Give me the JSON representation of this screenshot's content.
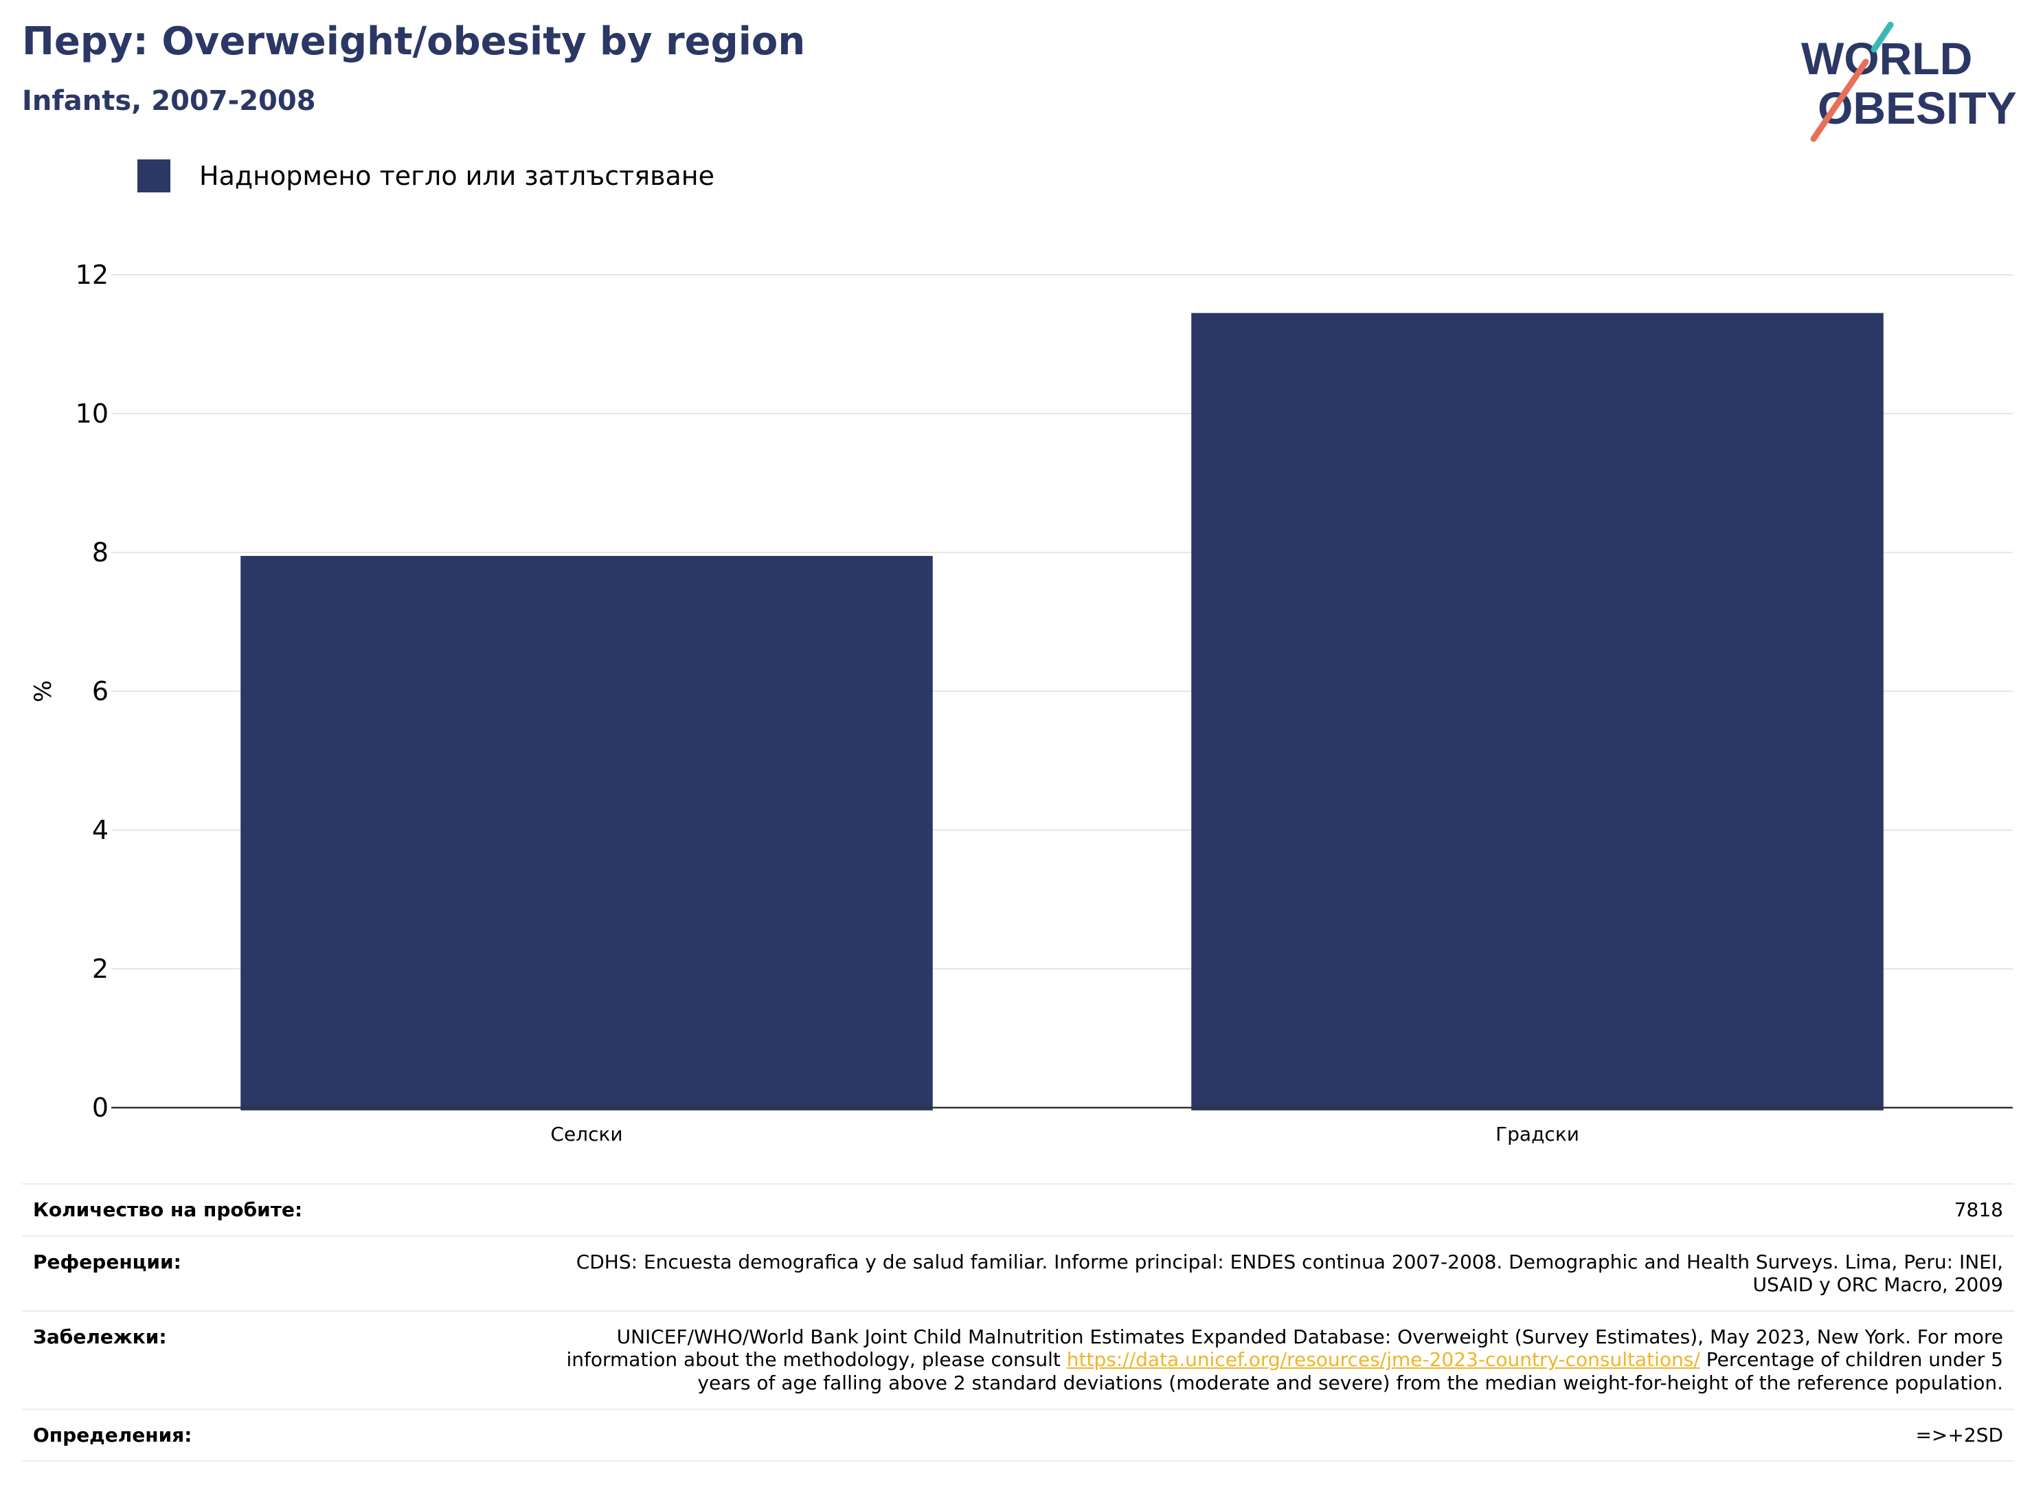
{
  "header": {
    "title": "Перу: Overweight/obesity by region",
    "subtitle": "Infants, 2007-2008"
  },
  "logo": {
    "line1": "WORLD",
    "line2": "OBESITY"
  },
  "colors": {
    "bar": "#2b3764",
    "title": "#2b3764",
    "link": "#f0b429",
    "grid": "#e6e6e6",
    "axis": "#333333"
  },
  "chart_data": {
    "type": "bar",
    "categories": [
      "Селски",
      "Градски"
    ],
    "series": [
      {
        "name": "Наднормено тегло или затлъстяване",
        "values": [
          7.95,
          11.45
        ]
      }
    ],
    "ylabel": "%",
    "xlabel": "",
    "ylim": [
      0,
      12
    ],
    "yticks": [
      0,
      2,
      4,
      6,
      8,
      10,
      12
    ],
    "grid": true,
    "legend": "top-left"
  },
  "info": {
    "sample_label": "Количество на пробите:",
    "sample_value": "7818",
    "references_label": "Референции:",
    "references_value": "CDHS: Encuesta demografica y de salud familiar. Informe principal: ENDES continua 2007-2008. Demographic and Health Surveys. Lima, Peru: INEI, USAID y ORC Macro, 2009",
    "notes_label": "Забележки:",
    "notes_before": "UNICEF/WHO/World Bank Joint Child Malnutrition Estimates Expanded Database: Overweight (Survey Estimates), May 2023, New York. For more information about the methodology, please consult ",
    "notes_link": "https://data.unicef.org/resources/jme-2023-country-consultations/",
    "notes_after": " Percentage of children under 5 years of age falling above 2 standard deviations (moderate and severe) from the median weight-for-height of the reference population.",
    "definitions_label": "Определения:",
    "definitions_value": "=>+2SD"
  }
}
